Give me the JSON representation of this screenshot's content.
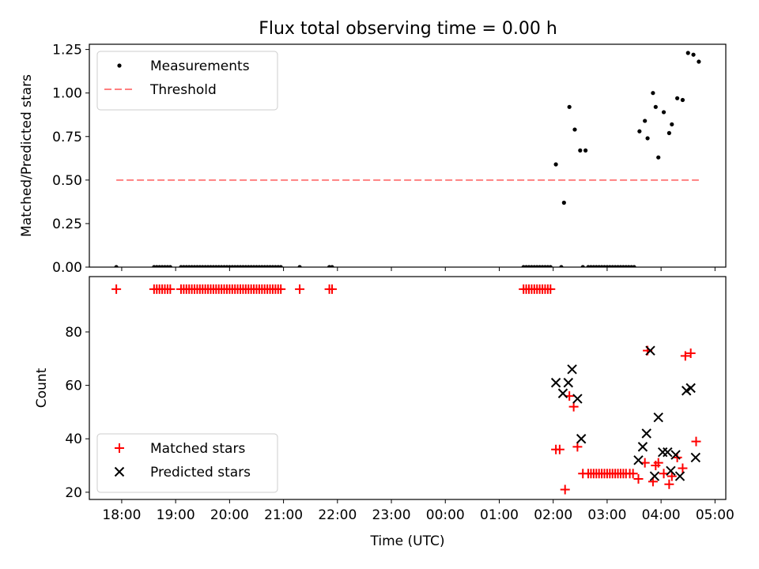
{
  "title": "Flux total observing time = 0.00 h",
  "chart_data": [
    {
      "type": "scatter",
      "ylabel": "Matched/Predicted stars",
      "xlabel": "",
      "xlim": [
        -0.6,
        11.2
      ],
      "ylim": [
        0,
        1.28
      ],
      "yticks": [
        0.0,
        0.25,
        0.5,
        0.75,
        1.0,
        1.25
      ],
      "ytick_labels": [
        "0.00",
        "0.25",
        "0.50",
        "0.75",
        "1.00",
        "1.25"
      ],
      "grid": false,
      "legend": "upper-left",
      "series": [
        {
          "name": "Measurements",
          "color": "#000000",
          "marker": "dot",
          "x": [
            -0.1,
            0.6,
            0.65,
            0.7,
            0.75,
            0.8,
            0.85,
            0.9,
            1.1,
            1.15,
            1.2,
            1.25,
            1.3,
            1.35,
            1.4,
            1.45,
            1.5,
            1.55,
            1.6,
            1.65,
            1.7,
            1.75,
            1.8,
            1.85,
            1.9,
            1.95,
            2.0,
            2.05,
            2.1,
            2.15,
            2.2,
            2.25,
            2.3,
            2.35,
            2.4,
            2.45,
            2.5,
            2.55,
            2.6,
            2.65,
            2.7,
            2.75,
            2.8,
            2.85,
            2.9,
            2.95,
            3.3,
            3.85,
            3.9,
            7.45,
            7.5,
            7.55,
            7.6,
            7.65,
            7.7,
            7.75,
            7.8,
            7.85,
            7.9,
            7.95,
            8.05,
            8.15,
            8.2,
            8.3,
            8.4,
            8.5,
            8.6,
            8.55,
            8.65,
            8.7,
            8.75,
            8.8,
            8.85,
            8.9,
            8.95,
            9.0,
            9.05,
            9.1,
            9.15,
            9.2,
            9.25,
            9.3,
            9.35,
            9.4,
            9.45,
            9.5,
            9.6,
            9.7,
            9.75,
            9.85,
            9.9,
            9.95,
            10.05,
            10.15,
            10.2,
            10.3,
            10.4,
            10.5,
            10.6,
            10.7
          ],
          "y": [
            0,
            0,
            0,
            0,
            0,
            0,
            0,
            0,
            0,
            0,
            0,
            0,
            0,
            0,
            0,
            0,
            0,
            0,
            0,
            0,
            0,
            0,
            0,
            0,
            0,
            0,
            0,
            0,
            0,
            0,
            0,
            0,
            0,
            0,
            0,
            0,
            0,
            0,
            0,
            0,
            0,
            0,
            0,
            0,
            0,
            0,
            0,
            0,
            0,
            0,
            0,
            0,
            0,
            0,
            0,
            0,
            0,
            0,
            0,
            0,
            0.59,
            0,
            0.37,
            0.92,
            0.79,
            0.67,
            0.67,
            0,
            0,
            0,
            0,
            0,
            0,
            0,
            0,
            0,
            0,
            0,
            0,
            0,
            0,
            0,
            0,
            0,
            0,
            0,
            0.78,
            0.84,
            0.74,
            1.0,
            0.92,
            0.63,
            0.89,
            0.77,
            0.82,
            0.97,
            0.96,
            1.23,
            1.22,
            1.18
          ]
        },
        {
          "name": "Threshold",
          "color": "#ff8080",
          "marker": "dashed-line",
          "x": [
            -0.1,
            10.7
          ],
          "y": [
            0.5,
            0.5
          ]
        }
      ]
    },
    {
      "type": "scatter",
      "ylabel": "Count",
      "xlabel": "Time (UTC)",
      "xlim": [
        -0.6,
        11.2
      ],
      "ylim": [
        17.3,
        100.7
      ],
      "yticks": [
        20,
        40,
        60,
        80
      ],
      "ytick_labels": [
        "20",
        "40",
        "60",
        "80"
      ],
      "xticks": [
        0,
        1,
        2,
        3,
        4,
        5,
        6,
        7,
        8,
        9,
        10,
        11
      ],
      "xtick_labels": [
        "18:00",
        "19:00",
        "20:00",
        "21:00",
        "22:00",
        "23:00",
        "00:00",
        "01:00",
        "02:00",
        "03:00",
        "04:00",
        "05:00"
      ],
      "grid": false,
      "legend": "lower-left",
      "series": [
        {
          "name": "Matched stars",
          "color": "#ff0000",
          "marker": "plus",
          "x": [
            -0.1,
            0.6,
            0.65,
            0.7,
            0.75,
            0.8,
            0.85,
            0.9,
            1.1,
            1.15,
            1.2,
            1.25,
            1.3,
            1.35,
            1.4,
            1.45,
            1.5,
            1.55,
            1.6,
            1.65,
            1.7,
            1.75,
            1.8,
            1.85,
            1.9,
            1.95,
            2.0,
            2.05,
            2.1,
            2.15,
            2.2,
            2.25,
            2.3,
            2.35,
            2.4,
            2.45,
            2.5,
            2.55,
            2.6,
            2.65,
            2.7,
            2.75,
            2.8,
            2.85,
            2.9,
            2.95,
            3.3,
            3.85,
            3.9,
            7.45,
            7.5,
            7.55,
            7.6,
            7.65,
            7.7,
            7.75,
            7.8,
            7.85,
            7.9,
            7.95,
            8.05,
            8.12,
            8.22,
            8.3,
            8.38,
            8.45,
            8.55,
            8.65,
            8.7,
            8.75,
            8.8,
            8.85,
            8.9,
            8.95,
            9.0,
            9.05,
            9.1,
            9.15,
            9.2,
            9.25,
            9.3,
            9.35,
            9.42,
            9.48,
            9.58,
            9.7,
            9.75,
            9.85,
            9.9,
            9.95,
            10.05,
            10.15,
            10.2,
            10.3,
            10.4,
            10.45,
            10.55,
            10.65
          ],
          "y": [
            96,
            96,
            96,
            96,
            96,
            96,
            96,
            96,
            96,
            96,
            96,
            96,
            96,
            96,
            96,
            96,
            96,
            96,
            96,
            96,
            96,
            96,
            96,
            96,
            96,
            96,
            96,
            96,
            96,
            96,
            96,
            96,
            96,
            96,
            96,
            96,
            96,
            96,
            96,
            96,
            96,
            96,
            96,
            96,
            96,
            96,
            96,
            96,
            96,
            96,
            96,
            96,
            96,
            96,
            96,
            96,
            96,
            96,
            96,
            96,
            36,
            36,
            21,
            56,
            52,
            37,
            27,
            27,
            27,
            27,
            27,
            27,
            27,
            27,
            27,
            27,
            27,
            27,
            27,
            27,
            27,
            27,
            27,
            27,
            25,
            31,
            73,
            24,
            30,
            31,
            27,
            23,
            26,
            33,
            29,
            71,
            72,
            39
          ]
        },
        {
          "name": "Predicted stars",
          "color": "#000000",
          "marker": "x",
          "x": [
            8.05,
            8.18,
            8.28,
            8.35,
            8.45,
            8.52,
            9.58,
            9.66,
            9.73,
            9.8,
            9.88,
            9.95,
            10.03,
            10.12,
            10.18,
            10.27,
            10.35,
            10.47,
            10.55,
            10.64
          ],
          "y": [
            61,
            57,
            61,
            66,
            55,
            40,
            32,
            37,
            42,
            73,
            26,
            48,
            35,
            35,
            28,
            34,
            26,
            58,
            59,
            33
          ]
        }
      ]
    }
  ]
}
